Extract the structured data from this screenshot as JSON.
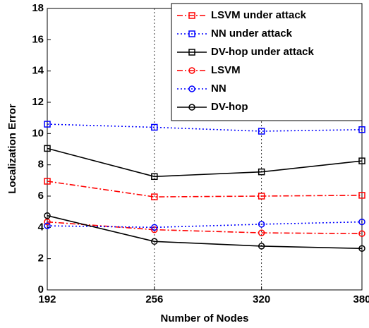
{
  "chart_data": {
    "type": "line",
    "x": [
      192,
      256,
      320,
      380
    ],
    "xlim": [
      192,
      380
    ],
    "xticks": [
      192,
      256,
      320,
      380
    ],
    "ylim": [
      0,
      18
    ],
    "yticks": [
      0,
      2,
      4,
      6,
      8,
      10,
      12,
      14,
      16,
      18
    ],
    "xlabel": "Number of Nodes",
    "ylabel": "Localization Error",
    "grid": "x",
    "legend": "upper right",
    "series": [
      {
        "name": "LSVM under attack",
        "color": "#ff0000",
        "dash": "dashdot",
        "marker": "square",
        "values": [
          6.95,
          5.95,
          6.0,
          6.05
        ]
      },
      {
        "name": "NN under attack",
        "color": "#0000ff",
        "dash": "dotted",
        "marker": "square",
        "values": [
          10.6,
          10.4,
          10.15,
          10.25
        ]
      },
      {
        "name": "DV-hop under attack",
        "color": "#000000",
        "dash": "solid",
        "marker": "square",
        "values": [
          9.05,
          7.25,
          7.55,
          8.25
        ]
      },
      {
        "name": "LSVM",
        "color": "#ff0000",
        "dash": "dashdot",
        "marker": "circle",
        "values": [
          4.35,
          3.85,
          3.65,
          3.6
        ]
      },
      {
        "name": "NN",
        "color": "#0000ff",
        "dash": "dotted",
        "marker": "circle",
        "values": [
          4.1,
          4.0,
          4.2,
          4.35
        ]
      },
      {
        "name": "DV-hop",
        "color": "#000000",
        "dash": "solid",
        "marker": "circle",
        "values": [
          4.75,
          3.1,
          2.8,
          2.65
        ]
      }
    ]
  }
}
